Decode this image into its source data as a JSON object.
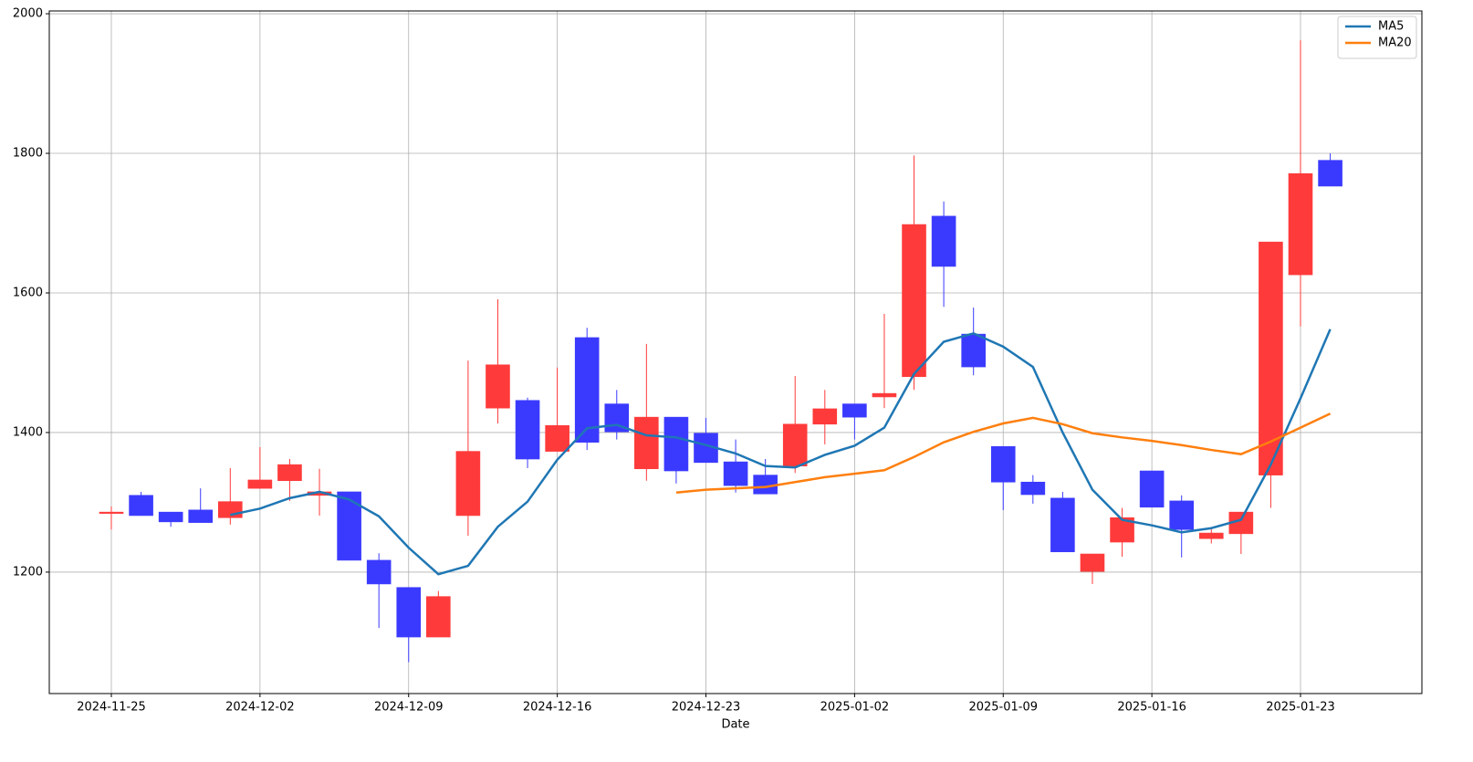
{
  "chart_data": {
    "type": "candlestick",
    "xlabel": "Date",
    "categories": [
      "2024-11-25",
      null,
      null,
      null,
      null,
      "2024-12-02",
      null,
      null,
      null,
      null,
      "2024-12-09",
      null,
      null,
      null,
      null,
      "2024-12-16",
      null,
      null,
      null,
      null,
      "2024-12-23",
      null,
      null,
      null,
      null,
      "2025-01-02",
      null,
      null,
      null,
      null,
      "2025-01-09",
      null,
      null,
      null,
      null,
      "2025-01-16",
      null,
      null,
      null,
      null,
      "2025-01-23",
      null
    ],
    "open": [
      1285,
      1310,
      1286,
      1289,
      1278,
      1320,
      1331,
      1310,
      1315,
      1217,
      1178,
      1107,
      1281,
      1435,
      1446,
      1373,
      1536,
      1441,
      1348,
      1422,
      1399,
      1358,
      1339,
      1352,
      1412,
      1441,
      1451,
      1480,
      1710,
      1541,
      1380,
      1329,
      1306,
      1201,
      1243,
      1345,
      1302,
      1248,
      1255,
      1339,
      1626,
      1790
    ],
    "high": [
      1294,
      1315,
      1286,
      1320,
      1349,
      1379,
      1362,
      1348,
      1315,
      1227,
      1178,
      1173,
      1503,
      1591,
      1450,
      1493,
      1550,
      1461,
      1527,
      1422,
      1421,
      1390,
      1362,
      1481,
      1461,
      1441,
      1570,
      1797,
      1731,
      1579,
      1380,
      1339,
      1315,
      1226,
      1292,
      1345,
      1310,
      1264,
      1286,
      1673,
      1962,
      1800
    ],
    "low": [
      1261,
      1281,
      1265,
      1271,
      1268,
      1320,
      1302,
      1281,
      1217,
      1120,
      1071,
      1107,
      1252,
      1413,
      1349,
      1373,
      1375,
      1390,
      1331,
      1327,
      1357,
      1314,
      1312,
      1342,
      1383,
      1390,
      1435,
      1461,
      1580,
      1482,
      1289,
      1298,
      1229,
      1183,
      1222,
      1293,
      1221,
      1241,
      1226,
      1292,
      1552,
      1753
    ],
    "close": [
      1286,
      1281,
      1272,
      1271,
      1301,
      1332,
      1354,
      1315,
      1217,
      1183,
      1107,
      1165,
      1373,
      1497,
      1362,
      1410,
      1386,
      1401,
      1422,
      1345,
      1357,
      1324,
      1312,
      1412,
      1434,
      1422,
      1456,
      1698,
      1638,
      1494,
      1329,
      1311,
      1229,
      1226,
      1278,
      1293,
      1261,
      1256,
      1286,
      1673,
      1771,
      1753
    ],
    "up_color": "#ff3a3a",
    "down_color": "#3a3aff",
    "series": [
      {
        "name": "MA5",
        "color": "#1f77b4",
        "values": [
          null,
          null,
          null,
          null,
          1282,
          1291,
          1306,
          1315,
          1304,
          1280,
          1235,
          1197,
          1209,
          1265,
          1301,
          1361,
          1406,
          1411,
          1396,
          1393,
          1382,
          1370,
          1352,
          1350,
          1368,
          1381,
          1407,
          1484,
          1530,
          1542,
          1523,
          1494,
          1400,
          1318,
          1275,
          1267,
          1257,
          1263,
          1275,
          1354,
          1449,
          1548
        ]
      },
      {
        "name": "MA20",
        "color": "#ff7f0e",
        "values": [
          null,
          null,
          null,
          null,
          null,
          null,
          null,
          null,
          null,
          null,
          null,
          null,
          null,
          null,
          null,
          null,
          null,
          null,
          null,
          1314,
          1318,
          1320,
          1322,
          1329,
          1336,
          1341,
          1346,
          1365,
          1386,
          1401,
          1413,
          1421,
          1412,
          1399,
          1393,
          1388,
          1382,
          1375,
          1369,
          1387,
          1407,
          1427
        ]
      }
    ],
    "ylim": [
      1026,
      2004
    ],
    "yticks": [
      1200,
      1400,
      1600,
      1800,
      2000
    ],
    "grid": true,
    "legend": "upper right"
  }
}
